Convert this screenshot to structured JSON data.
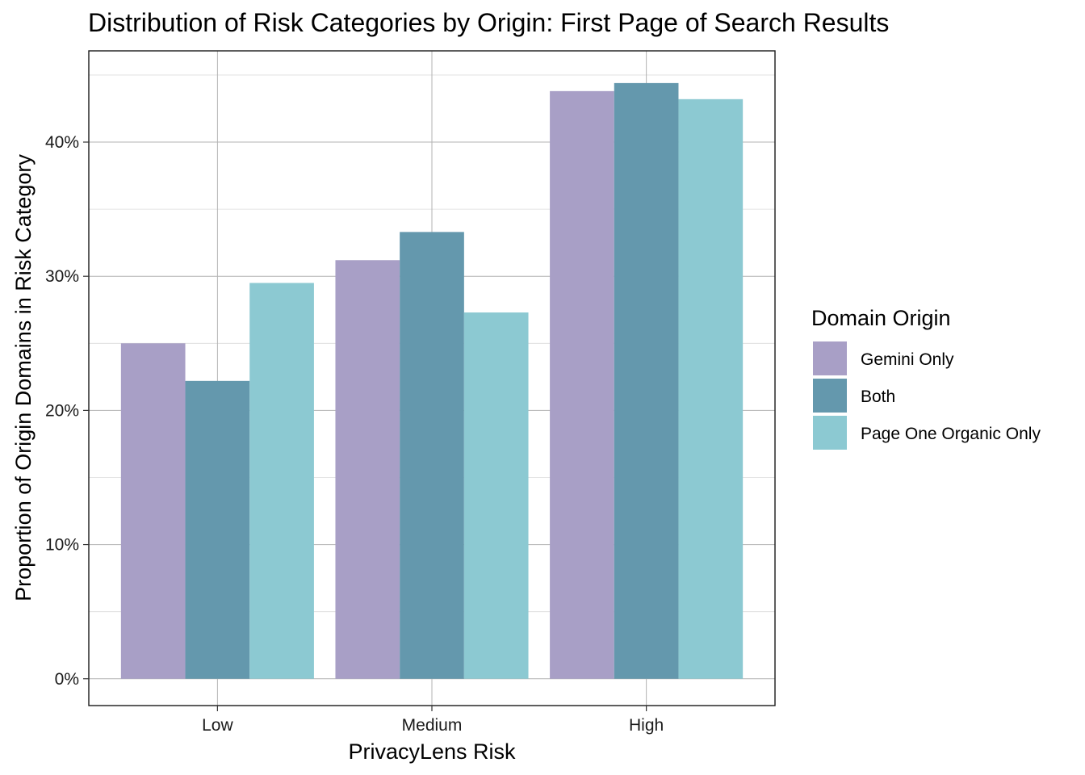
{
  "chart_data": {
    "type": "bar",
    "title": "Distribution of Risk Categories by Origin: First Page of Search Results",
    "xlabel": "PrivacyLens Risk",
    "ylabel": "Proportion of Origin Domains in Risk Category",
    "categories": [
      "Low",
      "Medium",
      "High"
    ],
    "series": [
      {
        "name": "Gemini Only",
        "values": [
          25.0,
          31.2,
          43.8
        ],
        "color": "#a89fc6"
      },
      {
        "name": "Both",
        "values": [
          22.2,
          33.3,
          44.4
        ],
        "color": "#6498ad"
      },
      {
        "name": "Page One Organic Only",
        "values": [
          29.5,
          27.3,
          43.2
        ],
        "color": "#8cc9d2"
      }
    ],
    "ylim": [
      -2,
      46.8
    ],
    "yticks": [
      0,
      10,
      20,
      30,
      40
    ],
    "ytick_labels": [
      "0%",
      "10%",
      "20%",
      "30%",
      "40%"
    ],
    "grid": true,
    "legend": {
      "title": "Domain Origin",
      "position": "right",
      "entries": [
        "Gemini Only",
        "Both",
        "Page One Organic Only"
      ]
    }
  }
}
